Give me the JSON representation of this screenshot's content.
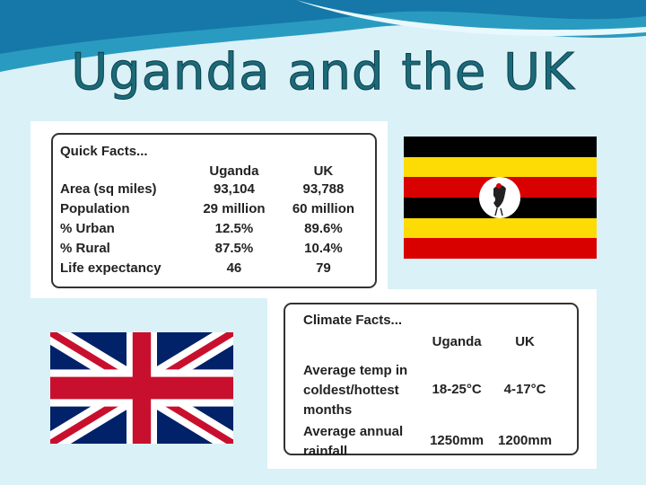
{
  "title": "Uganda and the UK",
  "quick_facts": {
    "heading": "Quick Facts...",
    "columns": [
      "Uganda",
      "UK"
    ],
    "rows": [
      [
        "Area (sq miles)",
        "93,104",
        "93,788"
      ],
      [
        "Population",
        "29 million",
        "60 million"
      ],
      [
        "% Urban",
        "12.5%",
        "89.6%"
      ],
      [
        "% Rural",
        "87.5%",
        "10.4%"
      ],
      [
        "Life expectancy",
        "46",
        "79"
      ]
    ]
  },
  "climate_facts": {
    "heading": "Climate Facts...",
    "columns": [
      "Uganda",
      "UK"
    ],
    "rows": [
      [
        "Average temp in coldest/hottest months",
        "18-25°C",
        "4-17°C"
      ],
      [
        "Average annual rainfall",
        "1250mm",
        "1200mm"
      ]
    ]
  }
}
